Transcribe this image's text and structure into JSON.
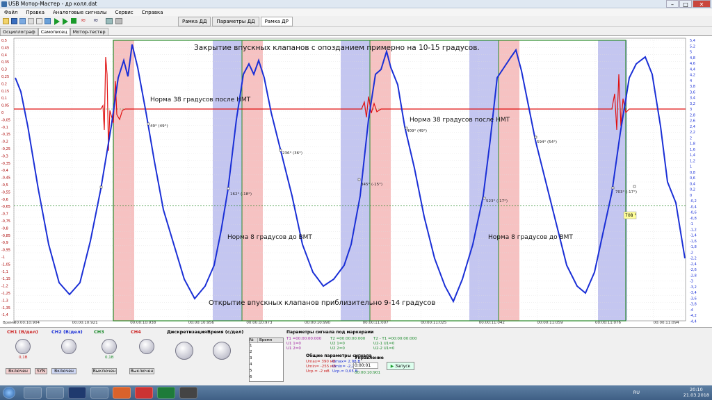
{
  "window": {
    "title": "USB Мотор-Мастер - др колл.dat",
    "minimize": "–",
    "maximize": "□",
    "close": "✕"
  },
  "menu": [
    "Файл",
    "Правка",
    "Аналоговые сигналы",
    "Сервис",
    "Справка"
  ],
  "view_tabs": [
    "Рамка ДД",
    "Параметры ДД",
    "Рамка ДР"
  ],
  "mode_tabs": [
    "Осциллограф",
    "Самописец",
    "Мотор-тестер"
  ],
  "plot": {
    "annotations": {
      "top": "Закрытие впускных клапанов с опозданием примерно на 10-15 градусов.",
      "norm38_a": "Норма 38 градусов после НМТ",
      "norm38_b": "Норма 38 градусов после НМТ",
      "norm8_a": "Норма 8 градусов до ВМТ",
      "norm8_b": "Норма 8 градусов до ВМТ",
      "bottom": "Открытие впускных клапанов приблизительно 9-14 градусов"
    },
    "markers": [
      "49° (49°)",
      "236° (36°)",
      "162° (-18°)",
      "409° (49°)",
      "345° (-15°)",
      "594° (54°)",
      "523° (-17°)",
      "703° (-17°)"
    ],
    "cursor_label": "708 °",
    "left_ticks": [
      "0,5",
      "0,45",
      "0,4",
      "0,35",
      "0,3",
      "0,25",
      "0,2",
      "0,15",
      "0,1",
      "0,05",
      "0",
      "-0,05",
      "-0,1",
      "-0,15",
      "-0,2",
      "-0,25",
      "-0,3",
      "-0,35",
      "-0,4",
      "-0,45",
      "-0,5",
      "-0,55",
      "-0,6",
      "-0,65",
      "-0,7",
      "-0,75",
      "-0,8",
      "-0,85",
      "-0,9",
      "-0,95",
      "-1",
      "-1,05",
      "-1,1",
      "-1,15",
      "-1,2",
      "-1,25",
      "-1,3",
      "-1,35",
      "-1,4"
    ],
    "right_ticks": [
      "5,4",
      "5,2",
      "5",
      "4,8",
      "4,6",
      "4,4",
      "4,2",
      "4",
      "3,8",
      "3,6",
      "3,4",
      "3,2",
      "3",
      "2,8",
      "2,6",
      "2,4",
      "2,2",
      "2",
      "1,8",
      "1,6",
      "1,4",
      "1,2",
      "1",
      "0,8",
      "0,6",
      "0,4",
      "0,2",
      "0",
      "-0,2",
      "-0,4",
      "-0,6",
      "-0,8",
      "-1",
      "-1,2",
      "-1,4",
      "-1,6",
      "-1,8",
      "-2",
      "-2,2",
      "-2,4",
      "-2,6",
      "-2,8",
      "-3",
      "-3,2",
      "-3,4",
      "-3,6",
      "-3,8",
      "-4",
      "-4,2",
      "-4,4"
    ],
    "time_axis_label": "Время",
    "time_ticks": [
      "00:00:10:904",
      "00:00:10:921",
      "00:00:10:938",
      "00:00:10:956",
      "00:00:10:973",
      "00:00:10:990",
      "00:00:11:007",
      "00:00:11:025",
      "00:00:11:042",
      "00:00:11:059",
      "00:00:11:076",
      "00:00:11:094"
    ],
    "colors": {
      "blue_trace": "#1a2fd6",
      "red_trace": "#e01010",
      "red_band": "#f6c2c2",
      "blue_band": "#c4c6f0",
      "frame": "#2a8a2a"
    }
  },
  "bottom": {
    "ch1": {
      "title": "CH1 (В/дел)",
      "on": "Включен",
      "extra": "SYN",
      "value": "0,1В"
    },
    "ch2": {
      "title": "CH2 (В/дел)",
      "on": "Включен"
    },
    "ch3": {
      "title": "CH3",
      "off": "Выключен",
      "value": "0,1В"
    },
    "ch4": {
      "title": "CH4",
      "off": "Выключен"
    },
    "disc": {
      "title": "Дискретизация"
    },
    "time": {
      "title": "Время (с/дел)"
    },
    "table": {
      "col1": "№",
      "col2": "Время",
      "rows": [
        "1",
        "2",
        "3",
        "4",
        "5",
        "6"
      ]
    },
    "params_title": "Параметры сигнала под маркерами",
    "params": [
      "T1 =00:00:00:000",
      "U1 1=0",
      "U1 2=0",
      "T2 =00:00:00:000",
      "U2 1=0",
      "U2 2=0",
      "T2 - T1 =00:00:00:000",
      "U2-1 U1=0",
      "U2-2 U1=0"
    ],
    "general_title": "Общие параметры сигнала",
    "general": [
      "Umax= 390 мВ",
      "Umin= -255 мВ",
      "Ucp.= -2 мВ",
      "Umax= 2,98 В",
      "Umin= -2,24 В",
      "Ucp.= 0,05 В"
    ],
    "control_title": "Управление",
    "control_time": "0:00:01",
    "control_time2": "00:00:10:901",
    "start": "Запуск"
  },
  "tray": {
    "lang": "RU",
    "time": "20:10",
    "date": "21.03.2018"
  }
}
